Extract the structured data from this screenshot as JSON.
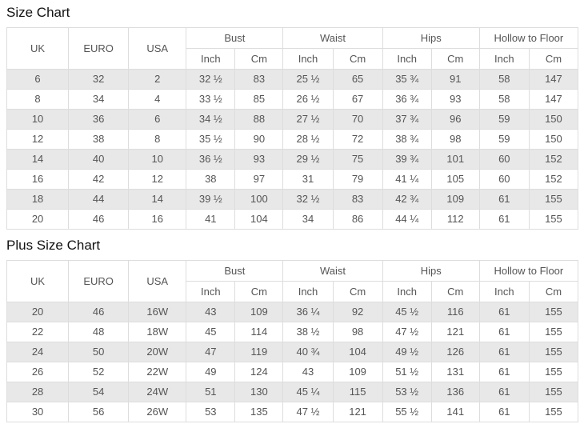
{
  "colors": {
    "stripe_row_bg": "#e8e8e8",
    "table_border": "#dddddd",
    "cell_text": "#555555",
    "title_text": "#111111",
    "header_bg": "#ffffff",
    "page_bg": "#ffffff"
  },
  "tables": [
    {
      "title": "Size Chart",
      "simple_headers": [
        "UK",
        "EURO",
        "USA"
      ],
      "groups": [
        {
          "label": "Bust",
          "sub": [
            "Inch",
            "Cm"
          ]
        },
        {
          "label": "Waist",
          "sub": [
            "Inch",
            "Cm"
          ]
        },
        {
          "label": "Hips",
          "sub": [
            "Inch",
            "Cm"
          ]
        },
        {
          "label": "Hollow to Floor",
          "sub": [
            "Inch",
            "Cm"
          ]
        }
      ]
    },
    {
      "title": "Plus Size Chart",
      "simple_headers": [
        "UK",
        "EURO",
        "USA"
      ],
      "groups": [
        {
          "label": "Bust",
          "sub": [
            "Inch",
            "Cm"
          ]
        },
        {
          "label": "Waist",
          "sub": [
            "Inch",
            "Cm"
          ]
        },
        {
          "label": "Hips",
          "sub": [
            "Inch",
            "Cm"
          ]
        },
        {
          "label": "Hollow to Floor",
          "sub": [
            "Inch",
            "Cm"
          ]
        }
      ]
    }
  ],
  "chart_data": [
    {
      "type": "table",
      "title": "Size Chart",
      "columns": [
        "UK",
        "EURO",
        "USA",
        "Bust Inch",
        "Bust Cm",
        "Waist Inch",
        "Waist Cm",
        "Hips Inch",
        "Hips Cm",
        "Hollow to Floor Inch",
        "Hollow to Floor Cm"
      ],
      "rows": [
        [
          "6",
          "32",
          "2",
          "32 ½",
          "83",
          "25 ½",
          "65",
          "35 ¾",
          "91",
          "58",
          "147"
        ],
        [
          "8",
          "34",
          "4",
          "33 ½",
          "85",
          "26 ½",
          "67",
          "36 ¾",
          "93",
          "58",
          "147"
        ],
        [
          "10",
          "36",
          "6",
          "34 ½",
          "88",
          "27 ½",
          "70",
          "37 ¾",
          "96",
          "59",
          "150"
        ],
        [
          "12",
          "38",
          "8",
          "35 ½",
          "90",
          "28 ½",
          "72",
          "38 ¾",
          "98",
          "59",
          "150"
        ],
        [
          "14",
          "40",
          "10",
          "36 ½",
          "93",
          "29 ½",
          "75",
          "39 ¾",
          "101",
          "60",
          "152"
        ],
        [
          "16",
          "42",
          "12",
          "38",
          "97",
          "31",
          "79",
          "41 ¼",
          "105",
          "60",
          "152"
        ],
        [
          "18",
          "44",
          "14",
          "39 ½",
          "100",
          "32 ½",
          "83",
          "42 ¾",
          "109",
          "61",
          "155"
        ],
        [
          "20",
          "46",
          "16",
          "41",
          "104",
          "34",
          "86",
          "44 ¼",
          "112",
          "61",
          "155"
        ]
      ]
    },
    {
      "type": "table",
      "title": "Plus Size Chart",
      "columns": [
        "UK",
        "EURO",
        "USA",
        "Bust Inch",
        "Bust Cm",
        "Waist Inch",
        "Waist Cm",
        "Hips Inch",
        "Hips Cm",
        "Hollow to Floor Inch",
        "Hollow to Floor Cm"
      ],
      "rows": [
        [
          "20",
          "46",
          "16W",
          "43",
          "109",
          "36 ¼",
          "92",
          "45 ½",
          "116",
          "61",
          "155"
        ],
        [
          "22",
          "48",
          "18W",
          "45",
          "114",
          "38 ½",
          "98",
          "47 ½",
          "121",
          "61",
          "155"
        ],
        [
          "24",
          "50",
          "20W",
          "47",
          "119",
          "40 ¾",
          "104",
          "49 ½",
          "126",
          "61",
          "155"
        ],
        [
          "26",
          "52",
          "22W",
          "49",
          "124",
          "43",
          "109",
          "51 ½",
          "131",
          "61",
          "155"
        ],
        [
          "28",
          "54",
          "24W",
          "51",
          "130",
          "45 ¼",
          "115",
          "53 ½",
          "136",
          "61",
          "155"
        ],
        [
          "30",
          "56",
          "26W",
          "53",
          "135",
          "47 ½",
          "121",
          "55 ½",
          "141",
          "61",
          "155"
        ]
      ]
    }
  ]
}
